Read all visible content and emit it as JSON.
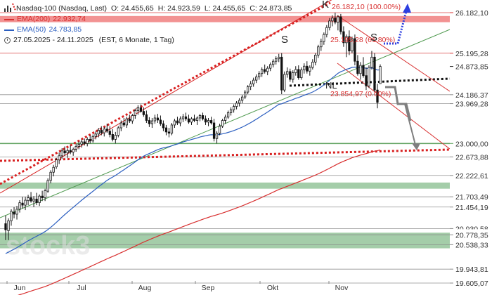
{
  "legend": {
    "instrument": "Nasdaq-100 (Nasdaq, Last)",
    "open": "O: 24.455,65",
    "high": "H: 24.923,59",
    "low": "L: 24.455,65",
    "close": "C: 24.873,85",
    "ema200_label": "EMA(200)",
    "ema200_value": "22.932,74",
    "ema50_label": "EMA(50)",
    "ema50_value": "24.783,85",
    "period": "27.05.2025 - 24.11.2025",
    "info": "(EST, 6 Monate, 1 Tag)"
  },
  "colors": {
    "ema200": "#d83030",
    "ema50": "#2c5fc0",
    "trendline_green": "#4f9a4f",
    "support_zone": "#94c49a",
    "resistance_zone": "#f07f7f",
    "projection_blue": "#2d3fe0",
    "red_dotted": "#d82020",
    "up_candle": "#ffffff",
    "down_candle": "#111111",
    "current_price_bg": "#1e1e1e"
  },
  "annotations": {
    "fib_100": "26.182,10 (100.00%)",
    "fib_618": "25.195,28 (61.80%)",
    "fib_0": "23.854,97 (0.00%)",
    "shoulder_left": "S",
    "shoulder_right": "S",
    "head": "K",
    "neckline": "NL",
    "watermark": "stock3"
  },
  "chart_data": {
    "type": "candlestick",
    "x_labels": [
      "Jun",
      "Jul",
      "Aug",
      "Sep",
      "Okt",
      "Nov"
    ],
    "y_range": [
      19500,
      26400
    ],
    "price_labels": [
      "26.182,10",
      "25.195,28",
      "24.873,85",
      "24.186,37",
      "23.969,28",
      "23.000,00",
      "22.673,88",
      "22.222,61",
      "21.703,49",
      "21.454,19",
      "20.930,58",
      "20.778,35",
      "20.538,33",
      "19.943,81",
      "19.605,07"
    ],
    "horizontal_levels": [
      {
        "price": 26182.1,
        "color": "#d83030",
        "style": "solid"
      },
      {
        "price": 25195.28,
        "color": "#d83030",
        "style": "solid"
      },
      {
        "price": 24186.37,
        "color": "#888888",
        "style": "solid"
      },
      {
        "price": 23969.28,
        "color": "#888888",
        "style": "solid"
      },
      {
        "price": 23000.0,
        "color": "#4f9a4f",
        "style": "solid"
      },
      {
        "price": 22673.88,
        "color": "#888888",
        "style": "solid"
      },
      {
        "price": 22222.61,
        "color": "#888888",
        "style": "solid"
      },
      {
        "price": 21703.49,
        "color": "#888888",
        "style": "solid"
      },
      {
        "price": 21454.19,
        "color": "#888888",
        "style": "solid"
      },
      {
        "price": 20930.58,
        "color": "#888888",
        "style": "solid"
      },
      {
        "price": 20778.35,
        "color": "#888888",
        "style": "solid"
      },
      {
        "price": 20538.33,
        "color": "#888888",
        "style": "solid"
      },
      {
        "price": 19943.81,
        "color": "#888888",
        "style": "solid"
      },
      {
        "price": 19605.07,
        "color": "#888888",
        "style": "solid"
      }
    ],
    "zones": [
      {
        "from": 25950,
        "to": 26100,
        "color": "#f07f7f"
      },
      {
        "from": 21900,
        "to": 22050,
        "color": "#94c49a"
      },
      {
        "from": 20450,
        "to": 20830,
        "color": "#94c49a"
      }
    ],
    "candles": [
      {
        "o": 21050,
        "h": 21250,
        "l": 20650,
        "c": 20900
      },
      {
        "o": 20880,
        "h": 21180,
        "l": 20650,
        "c": 21120
      },
      {
        "o": 21120,
        "h": 21400,
        "l": 21000,
        "c": 21350
      },
      {
        "o": 21330,
        "h": 21450,
        "l": 21180,
        "c": 21280
      },
      {
        "o": 21280,
        "h": 21480,
        "l": 21150,
        "c": 21400
      },
      {
        "o": 21400,
        "h": 21620,
        "l": 21320,
        "c": 21560
      },
      {
        "o": 21550,
        "h": 21700,
        "l": 21420,
        "c": 21500
      },
      {
        "o": 21500,
        "h": 21700,
        "l": 21380,
        "c": 21620
      },
      {
        "o": 21610,
        "h": 21750,
        "l": 21500,
        "c": 21680
      },
      {
        "o": 21680,
        "h": 21820,
        "l": 21560,
        "c": 21600
      },
      {
        "o": 21600,
        "h": 21720,
        "l": 21450,
        "c": 21650
      },
      {
        "o": 21650,
        "h": 21800,
        "l": 21500,
        "c": 21560
      },
      {
        "o": 21560,
        "h": 21760,
        "l": 21480,
        "c": 21720
      },
      {
        "o": 21720,
        "h": 21850,
        "l": 21600,
        "c": 21680
      },
      {
        "o": 21680,
        "h": 21900,
        "l": 21600,
        "c": 21850
      },
      {
        "o": 21840,
        "h": 22150,
        "l": 21800,
        "c": 22100
      },
      {
        "o": 22100,
        "h": 22350,
        "l": 22030,
        "c": 22300
      },
      {
        "o": 22300,
        "h": 22480,
        "l": 22200,
        "c": 22420
      },
      {
        "o": 22430,
        "h": 22650,
        "l": 22380,
        "c": 22600
      },
      {
        "o": 22600,
        "h": 22780,
        "l": 22500,
        "c": 22700
      },
      {
        "o": 22700,
        "h": 22880,
        "l": 22620,
        "c": 22820
      },
      {
        "o": 22820,
        "h": 22930,
        "l": 22700,
        "c": 22770
      },
      {
        "o": 22770,
        "h": 22880,
        "l": 22650,
        "c": 22830
      },
      {
        "o": 22830,
        "h": 22950,
        "l": 22740,
        "c": 22790
      },
      {
        "o": 22790,
        "h": 22900,
        "l": 22700,
        "c": 22860
      },
      {
        "o": 22860,
        "h": 22990,
        "l": 22800,
        "c": 22930
      },
      {
        "o": 22930,
        "h": 23050,
        "l": 22860,
        "c": 22980
      },
      {
        "o": 22980,
        "h": 23100,
        "l": 22900,
        "c": 23040
      },
      {
        "o": 23040,
        "h": 23120,
        "l": 22950,
        "c": 23000
      },
      {
        "o": 23000,
        "h": 23150,
        "l": 22930,
        "c": 23100
      },
      {
        "o": 23100,
        "h": 23200,
        "l": 23000,
        "c": 23060
      },
      {
        "o": 23060,
        "h": 23220,
        "l": 23020,
        "c": 23170
      },
      {
        "o": 23170,
        "h": 23300,
        "l": 23100,
        "c": 23230
      },
      {
        "o": 23230,
        "h": 23380,
        "l": 23150,
        "c": 23320
      },
      {
        "o": 23320,
        "h": 23420,
        "l": 23200,
        "c": 23260
      },
      {
        "o": 23260,
        "h": 23400,
        "l": 23170,
        "c": 23350
      },
      {
        "o": 23350,
        "h": 23480,
        "l": 23260,
        "c": 23300
      },
      {
        "o": 23300,
        "h": 23420,
        "l": 23150,
        "c": 23220
      },
      {
        "o": 23220,
        "h": 23350,
        "l": 23050,
        "c": 23100
      },
      {
        "o": 23100,
        "h": 23280,
        "l": 23000,
        "c": 23200
      },
      {
        "o": 23200,
        "h": 23420,
        "l": 23150,
        "c": 23380
      },
      {
        "o": 23380,
        "h": 23560,
        "l": 23300,
        "c": 23500
      },
      {
        "o": 23500,
        "h": 23620,
        "l": 23400,
        "c": 23450
      },
      {
        "o": 23450,
        "h": 23650,
        "l": 23380,
        "c": 23600
      },
      {
        "o": 23600,
        "h": 23700,
        "l": 23500,
        "c": 23550
      },
      {
        "o": 23550,
        "h": 23720,
        "l": 23480,
        "c": 23680
      },
      {
        "o": 23680,
        "h": 23850,
        "l": 23600,
        "c": 23800
      },
      {
        "o": 23800,
        "h": 23930,
        "l": 23700,
        "c": 23870
      },
      {
        "o": 23870,
        "h": 23950,
        "l": 23750,
        "c": 23780
      },
      {
        "o": 23780,
        "h": 23880,
        "l": 23650,
        "c": 23700
      },
      {
        "o": 23700,
        "h": 23800,
        "l": 23500,
        "c": 23560
      },
      {
        "o": 23560,
        "h": 23640,
        "l": 23400,
        "c": 23480
      },
      {
        "o": 23480,
        "h": 23620,
        "l": 23380,
        "c": 23550
      },
      {
        "o": 23550,
        "h": 23700,
        "l": 23480,
        "c": 23620
      },
      {
        "o": 23620,
        "h": 23720,
        "l": 23500,
        "c": 23570
      },
      {
        "o": 23570,
        "h": 23680,
        "l": 23430,
        "c": 23480
      },
      {
        "o": 23480,
        "h": 23560,
        "l": 23300,
        "c": 23380
      },
      {
        "o": 23380,
        "h": 23450,
        "l": 23200,
        "c": 23280
      },
      {
        "o": 23280,
        "h": 23380,
        "l": 23150,
        "c": 23250
      },
      {
        "o": 23250,
        "h": 23500,
        "l": 23200,
        "c": 23450
      },
      {
        "o": 23450,
        "h": 23600,
        "l": 23380,
        "c": 23550
      },
      {
        "o": 23550,
        "h": 23650,
        "l": 23450,
        "c": 23500
      },
      {
        "o": 23500,
        "h": 23660,
        "l": 23420,
        "c": 23600
      },
      {
        "o": 23600,
        "h": 23720,
        "l": 23520,
        "c": 23650
      },
      {
        "o": 23650,
        "h": 23750,
        "l": 23550,
        "c": 23600
      },
      {
        "o": 23600,
        "h": 23700,
        "l": 23480,
        "c": 23520
      },
      {
        "o": 23520,
        "h": 23640,
        "l": 23450,
        "c": 23600
      },
      {
        "o": 23600,
        "h": 23700,
        "l": 23520,
        "c": 23560
      },
      {
        "o": 23560,
        "h": 23660,
        "l": 23450,
        "c": 23620
      },
      {
        "o": 23620,
        "h": 23720,
        "l": 23540,
        "c": 23680
      },
      {
        "o": 23680,
        "h": 23750,
        "l": 23560,
        "c": 23600
      },
      {
        "o": 23600,
        "h": 23680,
        "l": 23450,
        "c": 23520
      },
      {
        "o": 23520,
        "h": 23620,
        "l": 23420,
        "c": 23560
      },
      {
        "o": 23560,
        "h": 23650,
        "l": 23460,
        "c": 23500
      },
      {
        "o": 23500,
        "h": 23600,
        "l": 23050,
        "c": 23120
      },
      {
        "o": 23120,
        "h": 23300,
        "l": 23000,
        "c": 23250
      },
      {
        "o": 23250,
        "h": 23480,
        "l": 23200,
        "c": 23420
      },
      {
        "o": 23420,
        "h": 23600,
        "l": 23380,
        "c": 23560
      },
      {
        "o": 23560,
        "h": 23700,
        "l": 23480,
        "c": 23640
      },
      {
        "o": 23640,
        "h": 23800,
        "l": 23600,
        "c": 23750
      },
      {
        "o": 23750,
        "h": 23880,
        "l": 23680,
        "c": 23820
      },
      {
        "o": 23820,
        "h": 23950,
        "l": 23750,
        "c": 23900
      },
      {
        "o": 23900,
        "h": 24030,
        "l": 23830,
        "c": 23980
      },
      {
        "o": 23980,
        "h": 24100,
        "l": 23900,
        "c": 24050
      },
      {
        "o": 24050,
        "h": 24180,
        "l": 23980,
        "c": 24130
      },
      {
        "o": 24130,
        "h": 24300,
        "l": 24080,
        "c": 24250
      },
      {
        "o": 24250,
        "h": 24420,
        "l": 24200,
        "c": 24380
      },
      {
        "o": 24380,
        "h": 24520,
        "l": 24300,
        "c": 24450
      },
      {
        "o": 24450,
        "h": 24600,
        "l": 24380,
        "c": 24540
      },
      {
        "o": 24540,
        "h": 24680,
        "l": 24470,
        "c": 24620
      },
      {
        "o": 24620,
        "h": 24760,
        "l": 24550,
        "c": 24700
      },
      {
        "o": 24700,
        "h": 24850,
        "l": 24620,
        "c": 24800
      },
      {
        "o": 24800,
        "h": 24920,
        "l": 24700,
        "c": 24750
      },
      {
        "o": 24750,
        "h": 24880,
        "l": 24660,
        "c": 24830
      },
      {
        "o": 24830,
        "h": 24970,
        "l": 24760,
        "c": 24920
      },
      {
        "o": 24920,
        "h": 25050,
        "l": 24850,
        "c": 25000
      },
      {
        "o": 25000,
        "h": 25120,
        "l": 24920,
        "c": 25060
      },
      {
        "o": 25060,
        "h": 25180,
        "l": 24980,
        "c": 25100
      },
      {
        "o": 25100,
        "h": 25200,
        "l": 24200,
        "c": 24300
      },
      {
        "o": 24300,
        "h": 24750,
        "l": 24250,
        "c": 24680
      },
      {
        "o": 24680,
        "h": 24850,
        "l": 24600,
        "c": 24750
      },
      {
        "o": 24750,
        "h": 24820,
        "l": 24500,
        "c": 24560
      },
      {
        "o": 24560,
        "h": 24780,
        "l": 24480,
        "c": 24720
      },
      {
        "o": 24720,
        "h": 24880,
        "l": 24650,
        "c": 24800
      },
      {
        "o": 24800,
        "h": 24900,
        "l": 24550,
        "c": 24600
      },
      {
        "o": 24600,
        "h": 24850,
        "l": 24550,
        "c": 24790
      },
      {
        "o": 24790,
        "h": 24950,
        "l": 24700,
        "c": 24880
      },
      {
        "o": 24880,
        "h": 25000,
        "l": 24700,
        "c": 24760
      },
      {
        "o": 24760,
        "h": 24900,
        "l": 24650,
        "c": 24850
      },
      {
        "o": 24850,
        "h": 25050,
        "l": 24800,
        "c": 24980
      },
      {
        "o": 24980,
        "h": 25200,
        "l": 24900,
        "c": 25150
      },
      {
        "o": 25150,
        "h": 25400,
        "l": 25080,
        "c": 25350
      },
      {
        "o": 25350,
        "h": 25550,
        "l": 25250,
        "c": 25480
      },
      {
        "o": 25480,
        "h": 25700,
        "l": 25400,
        "c": 25650
      },
      {
        "o": 25650,
        "h": 25880,
        "l": 25580,
        "c": 25820
      },
      {
        "o": 25820,
        "h": 26050,
        "l": 25750,
        "c": 25980
      },
      {
        "o": 25980,
        "h": 26120,
        "l": 25850,
        "c": 26050
      },
      {
        "o": 26050,
        "h": 26182,
        "l": 25900,
        "c": 25950
      },
      {
        "o": 25950,
        "h": 26120,
        "l": 25750,
        "c": 26080
      },
      {
        "o": 26080,
        "h": 26150,
        "l": 25650,
        "c": 25720
      },
      {
        "o": 25720,
        "h": 25850,
        "l": 25350,
        "c": 25450
      },
      {
        "o": 25450,
        "h": 25650,
        "l": 25100,
        "c": 25600
      },
      {
        "o": 25600,
        "h": 25750,
        "l": 25150,
        "c": 25250
      },
      {
        "o": 25250,
        "h": 25600,
        "l": 25200,
        "c": 25550
      },
      {
        "o": 25550,
        "h": 25650,
        "l": 24900,
        "c": 25000
      },
      {
        "o": 25000,
        "h": 25150,
        "l": 24650,
        "c": 24700
      },
      {
        "o": 24700,
        "h": 24980,
        "l": 24550,
        "c": 24900
      },
      {
        "o": 24900,
        "h": 25100,
        "l": 24600,
        "c": 24650
      },
      {
        "o": 24650,
        "h": 24850,
        "l": 24300,
        "c": 24400
      },
      {
        "o": 24400,
        "h": 24900,
        "l": 24350,
        "c": 24850
      },
      {
        "o": 24850,
        "h": 25250,
        "l": 24800,
        "c": 25100
      },
      {
        "o": 25100,
        "h": 25200,
        "l": 24250,
        "c": 24300
      },
      {
        "o": 24300,
        "h": 24450,
        "l": 23855,
        "c": 24000
      },
      {
        "o": 24455.65,
        "h": 24923.59,
        "l": 24455.65,
        "c": 24873.85
      }
    ]
  }
}
